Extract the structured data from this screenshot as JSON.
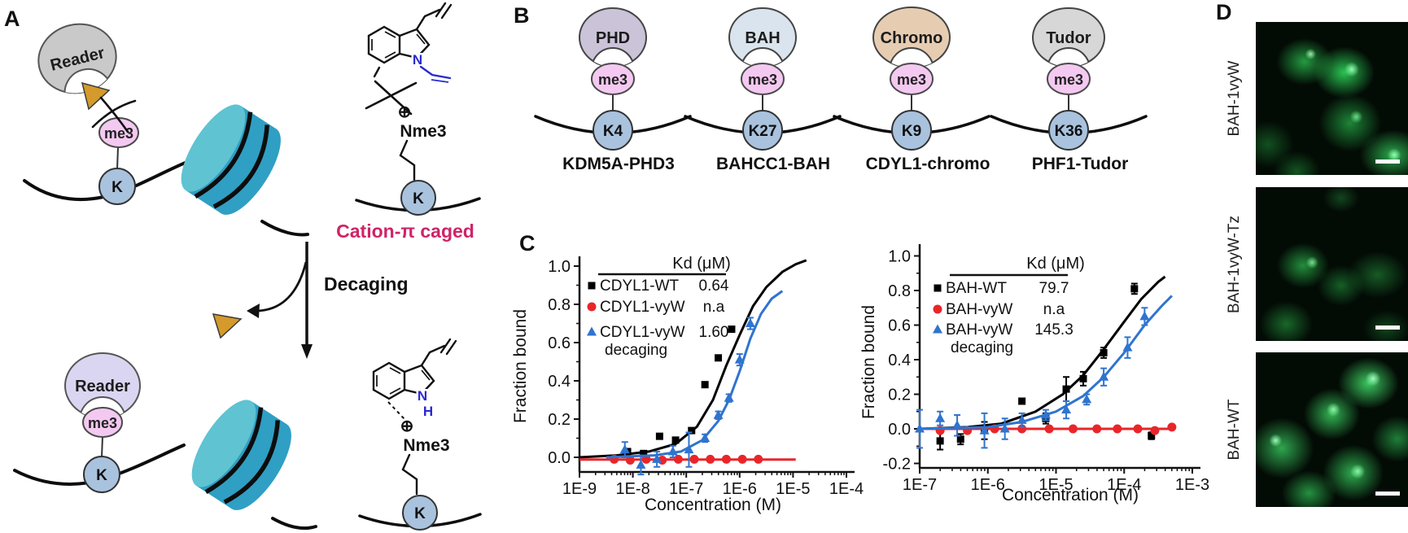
{
  "colors": {
    "caption": "#cf2368",
    "me3": "#f4c9f1",
    "k": "#a9c3de",
    "nucleosome_body": "#2f9fc4",
    "nucleosome_face": "#5fc3d2",
    "cage": "#d49a2b",
    "reader_top": "#c9c9c9",
    "reader_bottom": "#dad6f2",
    "series_red": "#e8262a",
    "series_blue": "#2f74cf",
    "heteroatom_blue": "#2a2ad0",
    "fluorescence_green": "#35d968"
  },
  "figure": {
    "panel_a": {
      "label": "A",
      "reader": "Reader",
      "me3": "me3",
      "k": "K",
      "decaging": "Decaging",
      "caption": "Cation-π caged",
      "nme3": "Nme3",
      "charge": "⊕",
      "n": "N",
      "h": "H"
    },
    "panel_b": {
      "label": "B",
      "me3": "me3",
      "complexes": [
        {
          "domain": "PHD",
          "site": "K4",
          "name": "KDM5A-PHD3",
          "color": "#cbc3d8"
        },
        {
          "domain": "BAH",
          "site": "K27",
          "name": "BAHCC1-BAH",
          "color": "#d9e4ee"
        },
        {
          "domain": "Chromo",
          "site": "K9",
          "name": "CDYL1-chromo",
          "color": "#e6cdb2"
        },
        {
          "domain": "Tudor",
          "site": "K36",
          "name": "PHF1-Tudor",
          "color": "#d7d7d7"
        }
      ]
    },
    "panel_c": {
      "label": "C"
    },
    "panel_d": {
      "label": "D",
      "rows": [
        {
          "label": "BAH-1vyW"
        },
        {
          "label": "BAH-1vyW-Tz"
        },
        {
          "label": "BAH-WT"
        }
      ]
    }
  },
  "chart_data": [
    {
      "type": "scatter",
      "panel": "C-left",
      "title": "",
      "xlabel": "Concentration (M)",
      "ylabel": "Fraction bound",
      "x_scale": "log",
      "grid": false,
      "legend_position": "upper-left-inside",
      "x_ticks": [
        "1E-9",
        "1E-8",
        "1E-7",
        "1E-6",
        "1E-5",
        "1E-4"
      ],
      "y_ticks": [
        "1.0",
        "0.8",
        "0.6",
        "0.4",
        "0.2",
        "0.0"
      ],
      "xlim": [
        "1E-9",
        "1E-4"
      ],
      "ylim": [
        -0.08,
        1.05
      ],
      "legend_header": "Kd (μM)",
      "series": [
        {
          "name": "CDYL1-WT",
          "kd": "0.64",
          "marker": "square",
          "color": "#000000",
          "points": [
            [
              -8.1,
              0.03,
              0
            ],
            [
              -7.8,
              0.02,
              0
            ],
            [
              -7.5,
              0.11,
              0
            ],
            [
              -7.2,
              0.09,
              0
            ],
            [
              -6.9,
              0.14,
              0
            ],
            [
              -6.65,
              0.38,
              0
            ],
            [
              -6.4,
              0.52,
              0
            ],
            [
              -6.15,
              0.67,
              0
            ]
          ],
          "curve": [
            [
              -9,
              0
            ],
            [
              -8.3,
              0.01
            ],
            [
              -7.7,
              0.03
            ],
            [
              -7.2,
              0.07
            ],
            [
              -6.8,
              0.16
            ],
            [
              -6.5,
              0.3
            ],
            [
              -6.25,
              0.48
            ],
            [
              -6,
              0.64
            ],
            [
              -5.75,
              0.79
            ],
            [
              -5.5,
              0.89
            ],
            [
              -5.2,
              0.97
            ],
            [
              -4.95,
              1.01
            ],
            [
              -4.75,
              1.03
            ]
          ]
        },
        {
          "name": "CDYL1-vyW",
          "kd": "n.a",
          "marker": "circle",
          "color": "#e8262a",
          "points": [
            [
              -8.35,
              -0.01,
              0
            ],
            [
              -8.05,
              -0.015,
              0
            ],
            [
              -7.75,
              -0.01,
              0
            ],
            [
              -7.45,
              -0.015,
              0
            ],
            [
              -7.15,
              -0.01,
              0
            ],
            [
              -6.85,
              -0.01,
              0
            ],
            [
              -6.55,
              -0.01,
              0
            ],
            [
              -6.25,
              -0.01,
              0
            ],
            [
              -5.95,
              -0.01,
              0
            ],
            [
              -5.65,
              -0.01,
              0
            ]
          ],
          "curve": [
            [
              -9,
              -0.012
            ],
            [
              -4.95,
              -0.012
            ]
          ]
        },
        {
          "name": "CDYL1-vyW",
          "name2": "decaging",
          "kd": "1.60",
          "marker": "triangle",
          "color": "#2f74cf",
          "points": [
            [
              -8.15,
              0.04,
              0.04
            ],
            [
              -7.85,
              -0.04,
              0.05
            ],
            [
              -7.55,
              -0.01,
              0.04
            ],
            [
              -7.25,
              0.03,
              0.03
            ],
            [
              -6.95,
              0.04,
              0.09
            ],
            [
              -6.65,
              0.1,
              0.02
            ],
            [
              -6.4,
              0.22,
              0.02
            ],
            [
              -6.2,
              0.31,
              0.02
            ],
            [
              -6.0,
              0.51,
              0.03
            ],
            [
              -5.8,
              0.7,
              0.03
            ]
          ],
          "curve": [
            [
              -8.5,
              0
            ],
            [
              -7.6,
              0.01
            ],
            [
              -7.1,
              0.03
            ],
            [
              -6.7,
              0.09
            ],
            [
              -6.4,
              0.19
            ],
            [
              -6.2,
              0.3
            ],
            [
              -6.0,
              0.45
            ],
            [
              -5.8,
              0.62
            ],
            [
              -5.6,
              0.75
            ],
            [
              -5.4,
              0.83
            ],
            [
              -5.2,
              0.87
            ]
          ]
        }
      ]
    },
    {
      "type": "scatter",
      "panel": "C-right",
      "title": "",
      "xlabel": "Concentration (M)",
      "ylabel": "Fraction bound",
      "x_scale": "log",
      "grid": false,
      "legend_position": "upper-left-inside",
      "x_ticks": [
        "1E-7",
        "1E-6",
        "1E-5",
        "1E-4",
        "1E-3"
      ],
      "y_ticks": [
        "1.0",
        "0.8",
        "0.6",
        "0.4",
        "0.2",
        "0.0",
        "-0.2"
      ],
      "xlim": [
        "1E-7",
        "1E-3"
      ],
      "ylim": [
        -0.23,
        1.07
      ],
      "legend_header": "Kd (μM)",
      "series": [
        {
          "name": "BAH-WT",
          "kd": "79.7",
          "marker": "square",
          "color": "#000000",
          "points": [
            [
              -6.7,
              -0.07,
              0.05
            ],
            [
              -6.4,
              -0.06,
              0.03
            ],
            [
              -6.05,
              -0.01,
              0.05
            ],
            [
              -5.5,
              0.16,
              0
            ],
            [
              -5.15,
              0.06,
              0.03
            ],
            [
              -4.85,
              0.23,
              0.07
            ],
            [
              -4.6,
              0.29,
              0.04
            ],
            [
              -4.3,
              0.44,
              0.03
            ],
            [
              -3.85,
              0.81,
              0.03
            ],
            [
              -3.6,
              -0.04,
              0.02
            ]
          ],
          "curve": [
            [
              -7,
              0
            ],
            [
              -6.3,
              0.01
            ],
            [
              -5.8,
              0.03
            ],
            [
              -5.3,
              0.1
            ],
            [
              -4.9,
              0.2
            ],
            [
              -4.6,
              0.31
            ],
            [
              -4.3,
              0.46
            ],
            [
              -4.0,
              0.62
            ],
            [
              -3.75,
              0.75
            ],
            [
              -3.5,
              0.85
            ],
            [
              -3.4,
              0.88
            ]
          ]
        },
        {
          "name": "BAH-vyW",
          "kd": "n.a",
          "marker": "circle",
          "color": "#e8262a",
          "points": [
            [
              -6.7,
              -0.01,
              0
            ],
            [
              -6.3,
              -0.01,
              0
            ],
            [
              -5.9,
              0,
              0
            ],
            [
              -5.5,
              0,
              0
            ],
            [
              -5.1,
              0,
              0
            ],
            [
              -4.75,
              0,
              0
            ],
            [
              -4.4,
              0,
              0
            ],
            [
              -4.1,
              0,
              0
            ],
            [
              -3.8,
              0,
              0
            ],
            [
              -3.55,
              -0.01,
              0
            ],
            [
              -3.3,
              0.01,
              0
            ]
          ],
          "curve": [
            [
              -7,
              0
            ],
            [
              -3.25,
              0
            ]
          ]
        },
        {
          "name": "BAH-vyW",
          "name2": "decaging",
          "kd": "145.3",
          "marker": "triangle",
          "color": "#2f74cf",
          "points": [
            [
              -7.0,
              0,
              0.11
            ],
            [
              -6.7,
              0.06,
              0.04
            ],
            [
              -6.45,
              0.02,
              0.06
            ],
            [
              -6.05,
              -0.01,
              0.1
            ],
            [
              -5.75,
              0,
              0.06
            ],
            [
              -5.5,
              0.05,
              0.04
            ],
            [
              -5.15,
              0.08,
              0.03
            ],
            [
              -4.85,
              0.11,
              0.05
            ],
            [
              -4.55,
              0.17,
              0.03
            ],
            [
              -4.3,
              0.3,
              0.05
            ],
            [
              -3.95,
              0.47,
              0.06
            ],
            [
              -3.7,
              0.65,
              0.05
            ]
          ],
          "curve": [
            [
              -7,
              0
            ],
            [
              -6,
              0.01
            ],
            [
              -5.5,
              0.04
            ],
            [
              -5.0,
              0.1
            ],
            [
              -4.6,
              0.19
            ],
            [
              -4.3,
              0.3
            ],
            [
              -4.0,
              0.44
            ],
            [
              -3.7,
              0.6
            ],
            [
              -3.45,
              0.71
            ],
            [
              -3.3,
              0.77
            ]
          ]
        }
      ]
    }
  ]
}
